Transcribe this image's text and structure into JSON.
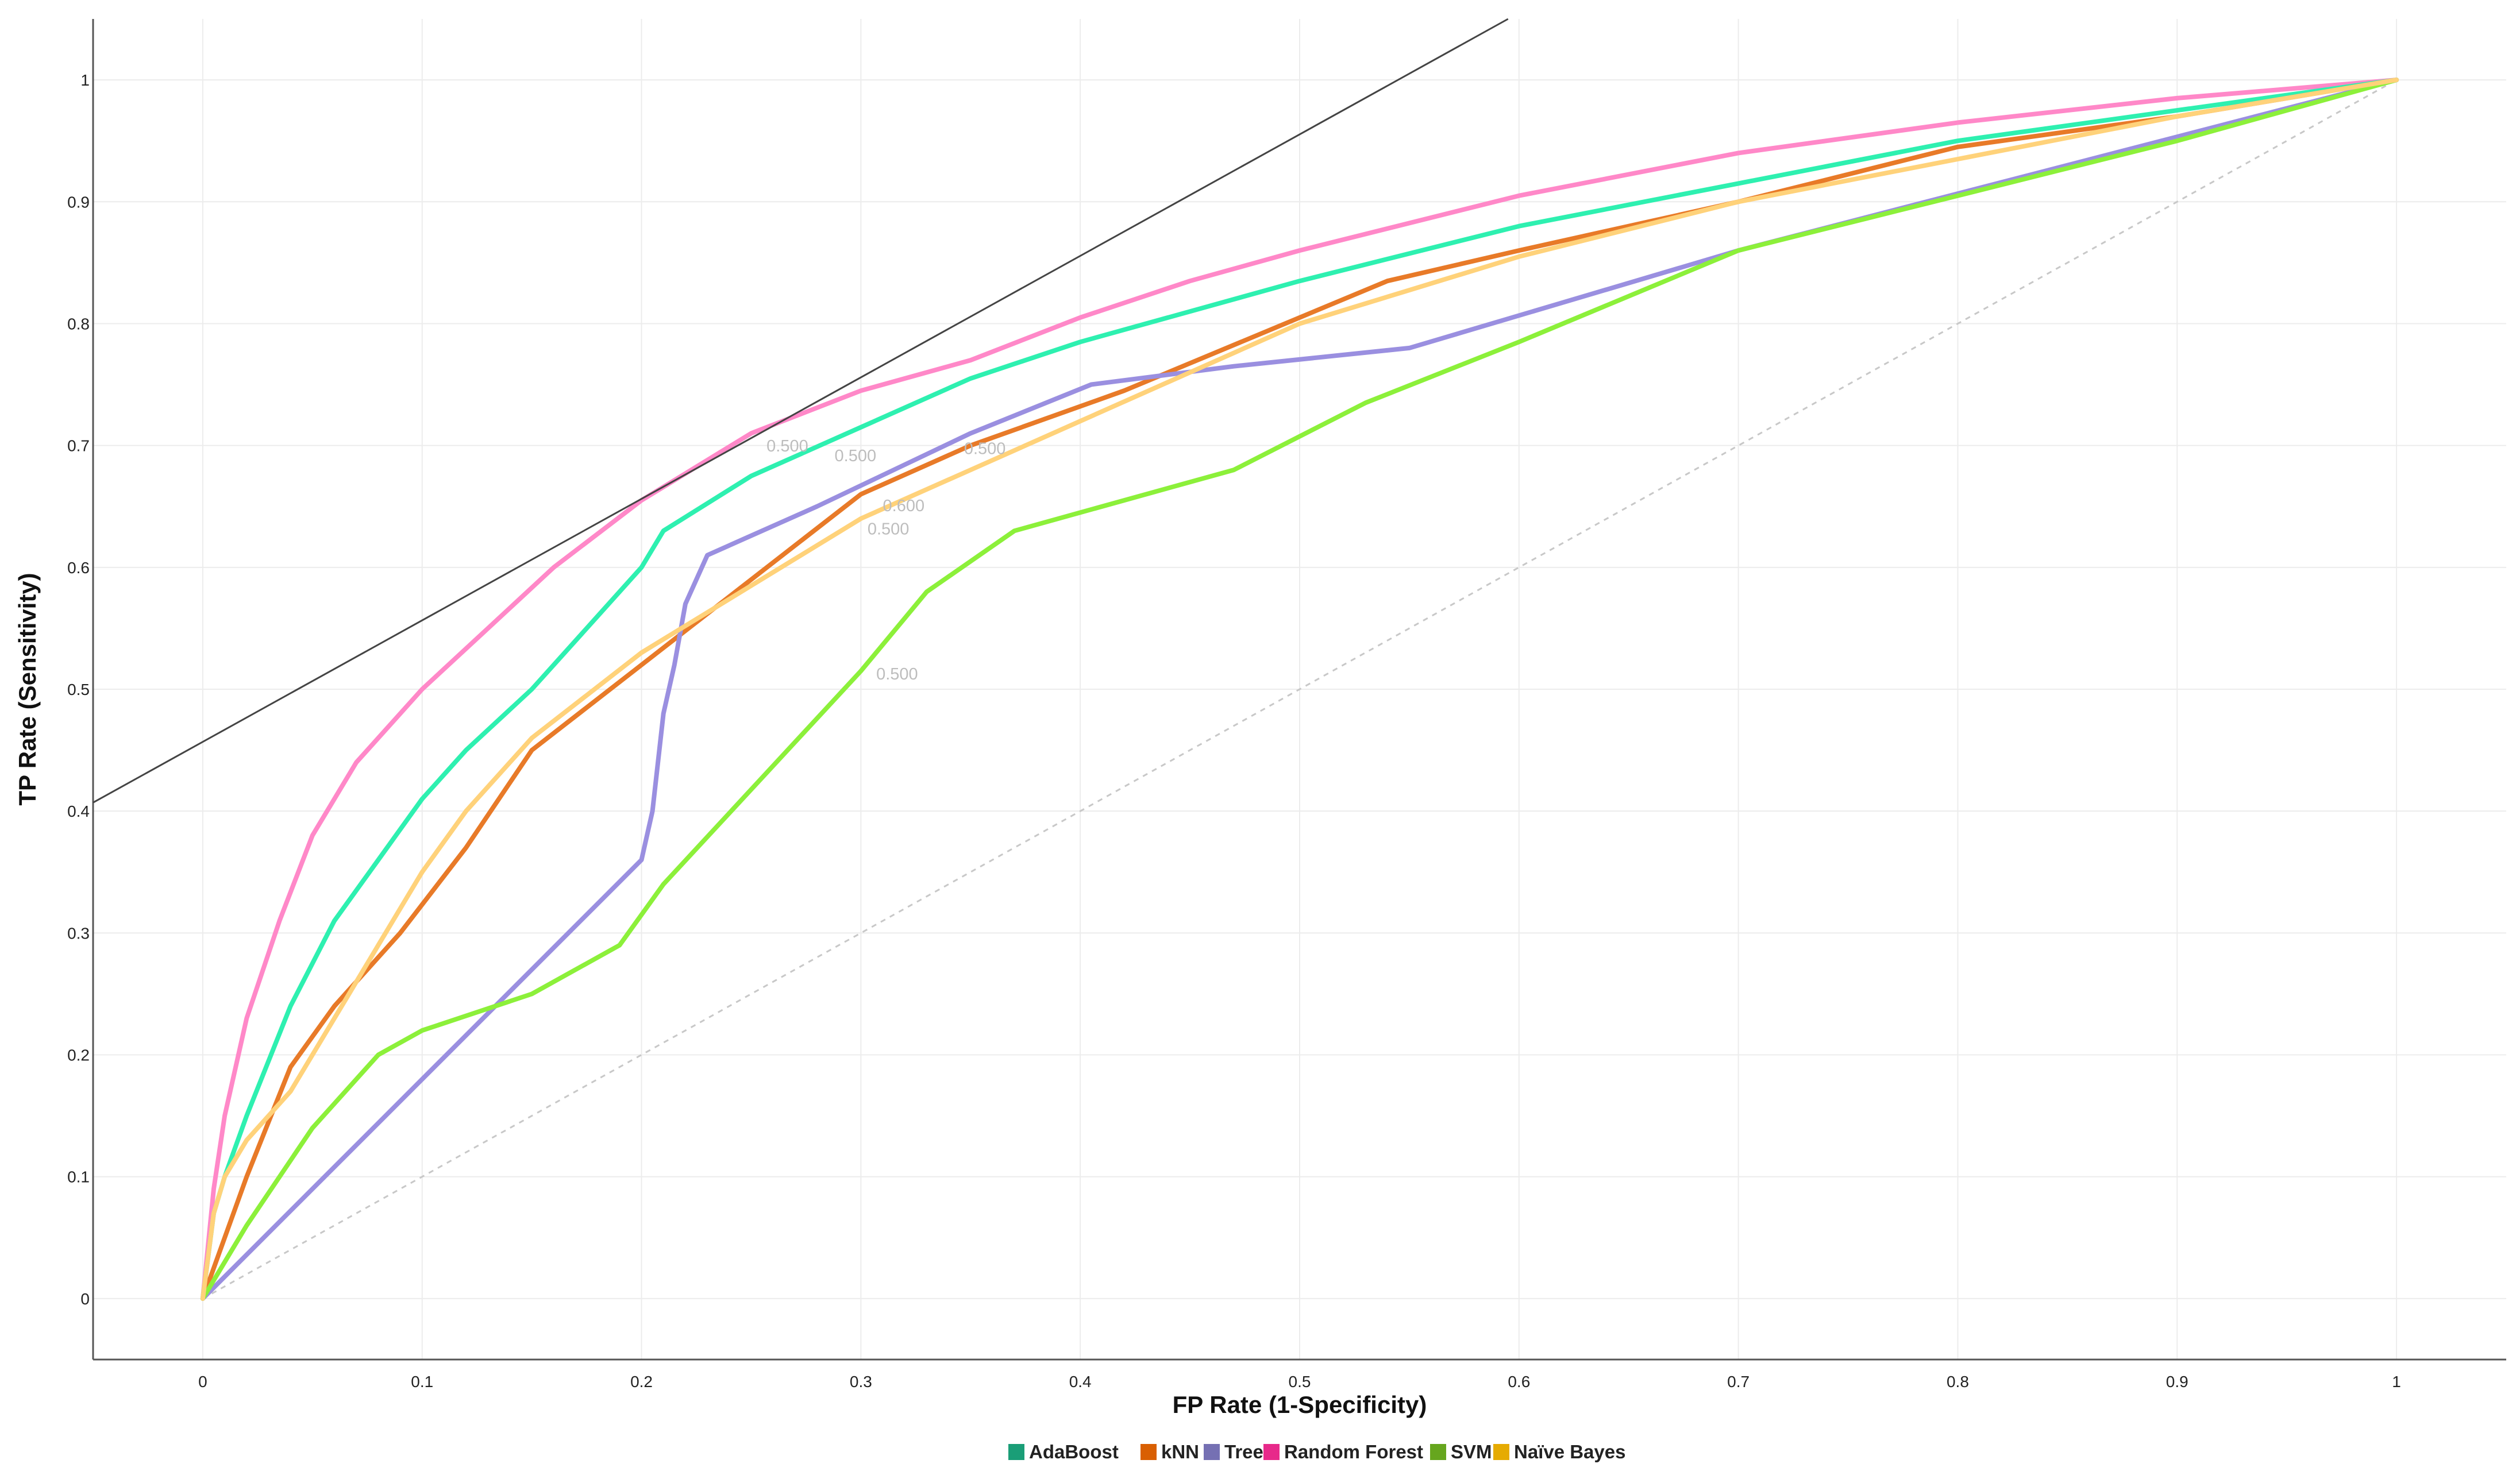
{
  "chart_data": {
    "type": "line",
    "xlabel": "FP Rate (1-Specificity)",
    "ylabel": "TP Rate (Sensitivity)",
    "xlim": [
      -0.05,
      1.05
    ],
    "ylim": [
      -0.05,
      1.05
    ],
    "xticks": [
      0,
      0.1,
      0.2,
      0.3,
      0.4,
      0.5,
      0.6,
      0.7,
      0.8,
      0.9,
      1
    ],
    "xtick_labels": [
      "0",
      "0.1",
      "0.2",
      "0.3",
      "0.4",
      "0.5",
      "0.6",
      "0.7",
      "0.8",
      "0.9",
      "1"
    ],
    "yticks": [
      0,
      0.1,
      0.2,
      0.3,
      0.4,
      0.5,
      0.6,
      0.7,
      0.8,
      0.9,
      1
    ],
    "ytick_labels": [
      "0",
      "0.1",
      "0.2",
      "0.3",
      "0.4",
      "0.5",
      "0.6",
      "0.7",
      "0.8",
      "0.9",
      "1"
    ],
    "grid": true,
    "legend_position": "bottom",
    "diagonal": true,
    "iso_line": {
      "color": "#444444",
      "points": [
        [
          -0.05,
          0.407
        ],
        [
          0.595,
          1.05
        ]
      ]
    },
    "series": [
      {
        "name": "Random Forest",
        "color": "#ff88c8",
        "x": [
          0,
          0.005,
          0.01,
          0.02,
          0.035,
          0.05,
          0.07,
          0.1,
          0.13,
          0.16,
          0.2,
          0.25,
          0.3,
          0.35,
          0.4,
          0.45,
          0.5,
          0.6,
          0.7,
          0.8,
          0.9,
          1
        ],
        "y": [
          0,
          0.09,
          0.15,
          0.23,
          0.31,
          0.38,
          0.44,
          0.5,
          0.55,
          0.6,
          0.655,
          0.71,
          0.745,
          0.77,
          0.805,
          0.835,
          0.86,
          0.905,
          0.94,
          0.965,
          0.985,
          1
        ]
      },
      {
        "name": "AdaBoost",
        "color": "#2ef0b0",
        "x": [
          0,
          0.005,
          0.01,
          0.02,
          0.04,
          0.06,
          0.08,
          0.1,
          0.12,
          0.15,
          0.18,
          0.2,
          0.21,
          0.25,
          0.3,
          0.35,
          0.4,
          0.5,
          0.6,
          0.7,
          0.8,
          0.9,
          1
        ],
        "y": [
          0,
          0.07,
          0.1,
          0.15,
          0.24,
          0.31,
          0.36,
          0.41,
          0.45,
          0.5,
          0.56,
          0.6,
          0.63,
          0.675,
          0.715,
          0.755,
          0.785,
          0.835,
          0.88,
          0.915,
          0.95,
          0.975,
          1
        ]
      },
      {
        "name": "kNN",
        "color": "#e87a28",
        "x": [
          0,
          0.02,
          0.04,
          0.06,
          0.09,
          0.12,
          0.15,
          0.2,
          0.25,
          0.3,
          0.35,
          0.42,
          0.54,
          0.6,
          0.7,
          0.8,
          0.9,
          1
        ],
        "y": [
          0,
          0.1,
          0.19,
          0.24,
          0.3,
          0.37,
          0.45,
          0.52,
          0.59,
          0.66,
          0.7,
          0.745,
          0.835,
          0.86,
          0.9,
          0.945,
          0.97,
          1
        ]
      },
      {
        "name": "Tree",
        "color": "#9a8fe0",
        "x": [
          0,
          0.2,
          0.205,
          0.21,
          0.215,
          0.22,
          0.23,
          0.28,
          0.35,
          0.405,
          0.47,
          0.55,
          0.7,
          0.85,
          1
        ],
        "y": [
          0,
          0.36,
          0.4,
          0.48,
          0.52,
          0.57,
          0.61,
          0.65,
          0.71,
          0.75,
          0.765,
          0.78,
          0.86,
          0.93,
          1
        ]
      },
      {
        "name": "SVM",
        "color": "#8cf03a",
        "x": [
          0,
          0.02,
          0.05,
          0.08,
          0.1,
          0.15,
          0.19,
          0.21,
          0.3,
          0.33,
          0.37,
          0.42,
          0.47,
          0.53,
          0.6,
          0.7,
          0.8,
          0.9,
          1
        ],
        "y": [
          0,
          0.06,
          0.14,
          0.2,
          0.22,
          0.25,
          0.29,
          0.34,
          0.515,
          0.58,
          0.63,
          0.655,
          0.68,
          0.735,
          0.785,
          0.86,
          0.905,
          0.95,
          1
        ]
      },
      {
        "name": "Naïve Bayes",
        "color": "#ffd27a",
        "x": [
          0,
          0.005,
          0.01,
          0.02,
          0.04,
          0.06,
          0.08,
          0.1,
          0.12,
          0.15,
          0.2,
          0.25,
          0.3,
          0.35,
          0.4,
          0.5,
          0.6,
          0.7,
          0.8,
          0.9,
          1
        ],
        "y": [
          0,
          0.07,
          0.1,
          0.13,
          0.17,
          0.23,
          0.29,
          0.35,
          0.4,
          0.46,
          0.53,
          0.585,
          0.64,
          0.68,
          0.72,
          0.8,
          0.855,
          0.9,
          0.935,
          0.97,
          1
        ]
      }
    ],
    "legend": [
      {
        "name": "AdaBoost",
        "color": "#1a9e77"
      },
      {
        "name": "kNN",
        "color": "#d95f02"
      },
      {
        "name": "Tree",
        "color": "#7570b3"
      },
      {
        "name": "Random Forest",
        "color": "#e7298a"
      },
      {
        "name": "SVM",
        "color": "#66a61e"
      },
      {
        "name": "Naïve Bayes",
        "color": "#e6ab02"
      }
    ],
    "annotations": [
      {
        "text": "0.500",
        "x": 0.257,
        "y": 0.695
      },
      {
        "text": "0.500",
        "x": 0.288,
        "y": 0.687
      },
      {
        "text": "0.500",
        "x": 0.347,
        "y": 0.693
      },
      {
        "text": "0.600",
        "x": 0.31,
        "y": 0.646
      },
      {
        "text": "0.500",
        "x": 0.303,
        "y": 0.627
      },
      {
        "text": "0.500",
        "x": 0.307,
        "y": 0.508
      }
    ]
  }
}
